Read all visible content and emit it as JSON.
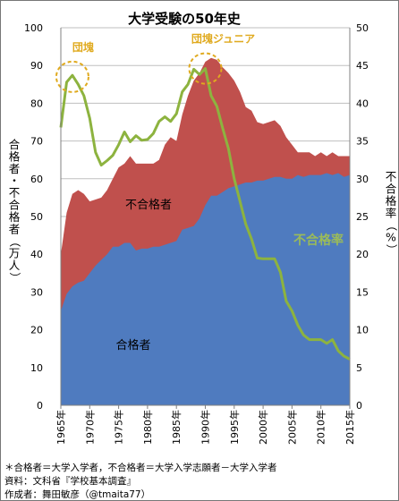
{
  "colors": {
    "pass_area": "#4f7bbf",
    "fail_area": "#c0504d",
    "fail_rate_line": "#8db33f",
    "annotation": "#e0aa1f",
    "grid": "#bfbfbf",
    "rate_label": "#9bbb59"
  },
  "chart_data": {
    "type": "area",
    "title": "大学受験の50年史",
    "ylabel_left": "合格者・不合格者（万人）",
    "ylabel_right": "不合格率（%）",
    "ylim_left": [
      0,
      100
    ],
    "ylim_right": [
      0,
      50
    ],
    "yticks_left": [
      "0",
      "10",
      "20",
      "30",
      "40",
      "50",
      "60",
      "70",
      "80",
      "90",
      "100"
    ],
    "yticks_right": [
      "0",
      "5",
      "10",
      "15",
      "20",
      "25",
      "30",
      "35",
      "40",
      "45",
      "50"
    ],
    "x": [
      1965,
      1966,
      1967,
      1968,
      1969,
      1970,
      1971,
      1972,
      1973,
      1974,
      1975,
      1976,
      1977,
      1978,
      1979,
      1980,
      1981,
      1982,
      1983,
      1984,
      1985,
      1986,
      1987,
      1988,
      1989,
      1990,
      1991,
      1992,
      1993,
      1994,
      1995,
      1996,
      1997,
      1998,
      1999,
      2000,
      2001,
      2002,
      2003,
      2004,
      2005,
      2006,
      2007,
      2008,
      2009,
      2010,
      2011,
      2012,
      2013,
      2014,
      2015
    ],
    "xtick_labels": [
      "1965年",
      "1970年",
      "1975年",
      "1980年",
      "1985年",
      "1990年",
      "1995年",
      "2000年",
      "2005年",
      "2010年",
      "2015年"
    ],
    "series": [
      {
        "name": "合格者",
        "kind": "area",
        "axis": "left",
        "values": [
          25,
          29.5,
          31.5,
          32.5,
          33,
          35,
          37,
          38.5,
          40,
          42,
          42,
          43,
          43,
          41,
          41.5,
          41.5,
          42,
          42,
          42.5,
          43,
          43.5,
          46.5,
          47,
          47.5,
          49.5,
          53,
          55.5,
          55.5,
          56.5,
          57.5,
          58,
          58.5,
          59,
          59,
          59.5,
          59.5,
          60,
          60.5,
          60.5,
          60,
          60,
          61,
          60.5,
          61,
          61,
          61,
          61.5,
          61,
          61.5,
          60.5,
          61
        ]
      },
      {
        "name": "不合格者",
        "kind": "stacked-area-top",
        "axis": "left",
        "values": [
          40,
          51,
          56,
          57,
          56,
          54,
          54.5,
          55,
          57,
          60,
          63,
          64,
          66,
          64,
          64,
          64,
          64,
          65,
          69,
          71,
          70,
          77,
          82,
          86,
          88,
          91,
          92,
          91.5,
          89.5,
          88,
          86,
          83,
          79,
          78,
          75,
          74.5,
          75,
          75.5,
          74,
          71,
          69,
          67,
          67,
          67,
          66,
          67,
          66,
          67,
          66,
          66,
          66
        ]
      },
      {
        "name": "不合格率",
        "kind": "line",
        "axis": "right",
        "values": [
          36.8,
          42.8,
          43.7,
          42.5,
          41,
          38,
          33.5,
          31.8,
          32.4,
          33.1,
          34.5,
          36.2,
          34.9,
          35.7,
          35.1,
          35.2,
          36,
          37.6,
          38.2,
          37.6,
          38.6,
          41.5,
          42.5,
          44.5,
          43.8,
          44.6,
          41,
          39.6,
          36.7,
          34,
          30,
          27,
          24,
          22,
          19.5,
          19.4,
          19.4,
          19.4,
          17.6,
          13.8,
          12.5,
          10.6,
          9.3,
          8.7,
          8.7,
          8.7,
          8.2,
          8.7,
          7.2,
          6.5,
          6.1
        ]
      }
    ],
    "area_labels": {
      "pass": "合格者",
      "fail": "不合格者",
      "rate": "不合格率"
    },
    "annotations": [
      {
        "text": "団塊",
        "year": 1967,
        "rate": 43.5
      },
      {
        "text": "団塊ジュニア",
        "year": 1990,
        "rate": 44.6
      }
    ],
    "grid": true
  },
  "footnotes": {
    "note": "＊合格者＝大学入学者，不合格者＝大学入学志願者－大学入学者",
    "source": "資料：文科省『学校基本調査』",
    "author": "作成者：舞田敏彦（@tmaita77）"
  }
}
